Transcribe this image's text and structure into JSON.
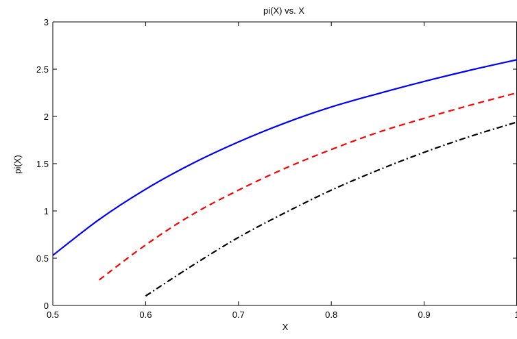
{
  "chart_data": {
    "type": "line",
    "title": "pi(X) vs. X",
    "xlabel": "X",
    "ylabel": "pi(X)",
    "xlim": [
      0.5,
      1.0
    ],
    "ylim": [
      0,
      3
    ],
    "x_ticks": [
      0.5,
      0.6,
      0.7,
      0.8,
      0.9,
      1.0
    ],
    "x_tick_labels": [
      "0.5",
      "0.6",
      "0.7",
      "0.8",
      "0.9",
      "1"
    ],
    "y_ticks": [
      0,
      0.5,
      1,
      1.5,
      2,
      2.5,
      3
    ],
    "y_tick_labels": [
      "0",
      "0.5",
      "1",
      "1.5",
      "2",
      "2.5",
      "3"
    ],
    "grid": false,
    "legend": false,
    "series": [
      {
        "color": "#0000ff",
        "style": "solid",
        "x": [
          0.5,
          0.55,
          0.6,
          0.65,
          0.7,
          0.75,
          0.8,
          0.85,
          0.9,
          0.95,
          1.0
        ],
        "y": [
          0.53,
          0.91,
          1.23,
          1.5,
          1.73,
          1.93,
          2.1,
          2.24,
          2.37,
          2.49,
          2.6
        ]
      },
      {
        "color": "#ff0000",
        "style": "dashed",
        "x": [
          0.55,
          0.6,
          0.65,
          0.7,
          0.75,
          0.8,
          0.85,
          0.9,
          0.95,
          1.0
        ],
        "y": [
          0.27,
          0.64,
          0.96,
          1.22,
          1.45,
          1.65,
          1.83,
          1.98,
          2.12,
          2.25
        ]
      },
      {
        "color": "#000000",
        "style": "dashdot",
        "x": [
          0.6,
          0.65,
          0.7,
          0.75,
          0.8,
          0.85,
          0.9,
          0.95,
          1.0
        ],
        "y": [
          0.1,
          0.42,
          0.72,
          0.98,
          1.22,
          1.43,
          1.62,
          1.79,
          1.94
        ]
      }
    ]
  }
}
